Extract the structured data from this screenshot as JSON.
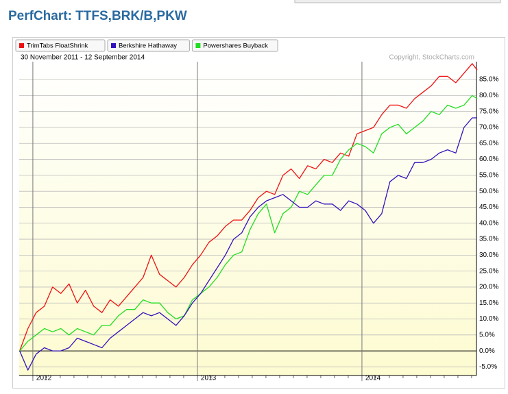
{
  "chart_data": {
    "type": "line",
    "title": "PerfChart: TTFS,BRK/B,PKW",
    "subtitle": "30 November 2011 - 12 September 2014",
    "annotation": "Copyright, StockCharts.com",
    "legend": "top-left",
    "grid": true,
    "x": [
      2011.92,
      2011.97,
      2012.02,
      2012.07,
      2012.12,
      2012.17,
      2012.22,
      2012.27,
      2012.32,
      2012.37,
      2012.42,
      2012.47,
      2012.52,
      2012.57,
      2012.62,
      2012.67,
      2012.72,
      2012.77,
      2012.82,
      2012.87,
      2012.92,
      2012.97,
      2013.02,
      2013.07,
      2013.12,
      2013.17,
      2013.22,
      2013.27,
      2013.32,
      2013.37,
      2013.42,
      2013.47,
      2013.52,
      2013.57,
      2013.62,
      2013.67,
      2013.72,
      2013.77,
      2013.82,
      2013.87,
      2013.92,
      2013.97,
      2014.02,
      2014.07,
      2014.12,
      2014.17,
      2014.22,
      2014.27,
      2014.32,
      2014.37,
      2014.42,
      2014.47,
      2014.52,
      2014.57,
      2014.62,
      2014.67,
      2014.7
    ],
    "xlim": [
      2011.917,
      2014.696
    ],
    "xticks": [
      2012,
      2013,
      2014
    ],
    "ylim": [
      -7.7,
      90.6
    ],
    "yticks": [
      {
        "value": -5,
        "label": "-5.0%"
      },
      {
        "value": 0,
        "label": "0.0%"
      },
      {
        "value": 5,
        "label": "5.0%"
      },
      {
        "value": 10,
        "label": "10.0%"
      },
      {
        "value": 15,
        "label": "15.0%"
      },
      {
        "value": 20,
        "label": "20.0%"
      },
      {
        "value": 25,
        "label": "25.0%"
      },
      {
        "value": 30,
        "label": "30.0%"
      },
      {
        "value": 35,
        "label": "35.0%"
      },
      {
        "value": 40,
        "label": "40.0%"
      },
      {
        "value": 45,
        "label": "45.0%"
      },
      {
        "value": 50,
        "label": "50.0%"
      },
      {
        "value": 55,
        "label": "55.0%"
      },
      {
        "value": 60,
        "label": "60.0%"
      },
      {
        "value": 65,
        "label": "65.0%"
      },
      {
        "value": 70,
        "label": "70.0%"
      },
      {
        "value": 75,
        "label": "75.0%"
      },
      {
        "value": 80,
        "label": "80.0%"
      },
      {
        "value": 85,
        "label": "85.0%"
      }
    ],
    "series": [
      {
        "name": "TrimTabs FloatShrink",
        "color": "#ee1111",
        "values": [
          0,
          7,
          12,
          14,
          20,
          18,
          21,
          15,
          19,
          14,
          12,
          16,
          14,
          17,
          20,
          23,
          30,
          24,
          22,
          20,
          23,
          27,
          30,
          34,
          36,
          39,
          41,
          41,
          44,
          48,
          50,
          49,
          55,
          57,
          54,
          58,
          57,
          60,
          59,
          62,
          61,
          68,
          69,
          70,
          74,
          77,
          77,
          76,
          79,
          81,
          83,
          86,
          86,
          84,
          87,
          90,
          88
        ]
      },
      {
        "name": "Berkshire Hathaway",
        "color": "#3311bb",
        "values": [
          0,
          -6,
          -1,
          1,
          0,
          0,
          1,
          4,
          3,
          2,
          1,
          4,
          6,
          8,
          10,
          12,
          11,
          12,
          10,
          8,
          11,
          15,
          18,
          22,
          26,
          30,
          35,
          37,
          42,
          45,
          47,
          48,
          49,
          47,
          45,
          45,
          47,
          46,
          46,
          44,
          47,
          46,
          44,
          40,
          43,
          53,
          55,
          54,
          59,
          59,
          60,
          62,
          63,
          62,
          70,
          73,
          73
        ]
      },
      {
        "name": "Powershares Buyback",
        "color": "#22dd22",
        "values": [
          0,
          3,
          5,
          7,
          6,
          7,
          5,
          7,
          6,
          5,
          8,
          8,
          11,
          13,
          13,
          16,
          15,
          15,
          12,
          10,
          11,
          16,
          18,
          20,
          23,
          27,
          30,
          31,
          38,
          43,
          46,
          37,
          43,
          45,
          50,
          49,
          52,
          55,
          55,
          60,
          63,
          65,
          64,
          62,
          68,
          70,
          71,
          68,
          70,
          72,
          75,
          74,
          77,
          76,
          77,
          80,
          79
        ]
      }
    ]
  }
}
